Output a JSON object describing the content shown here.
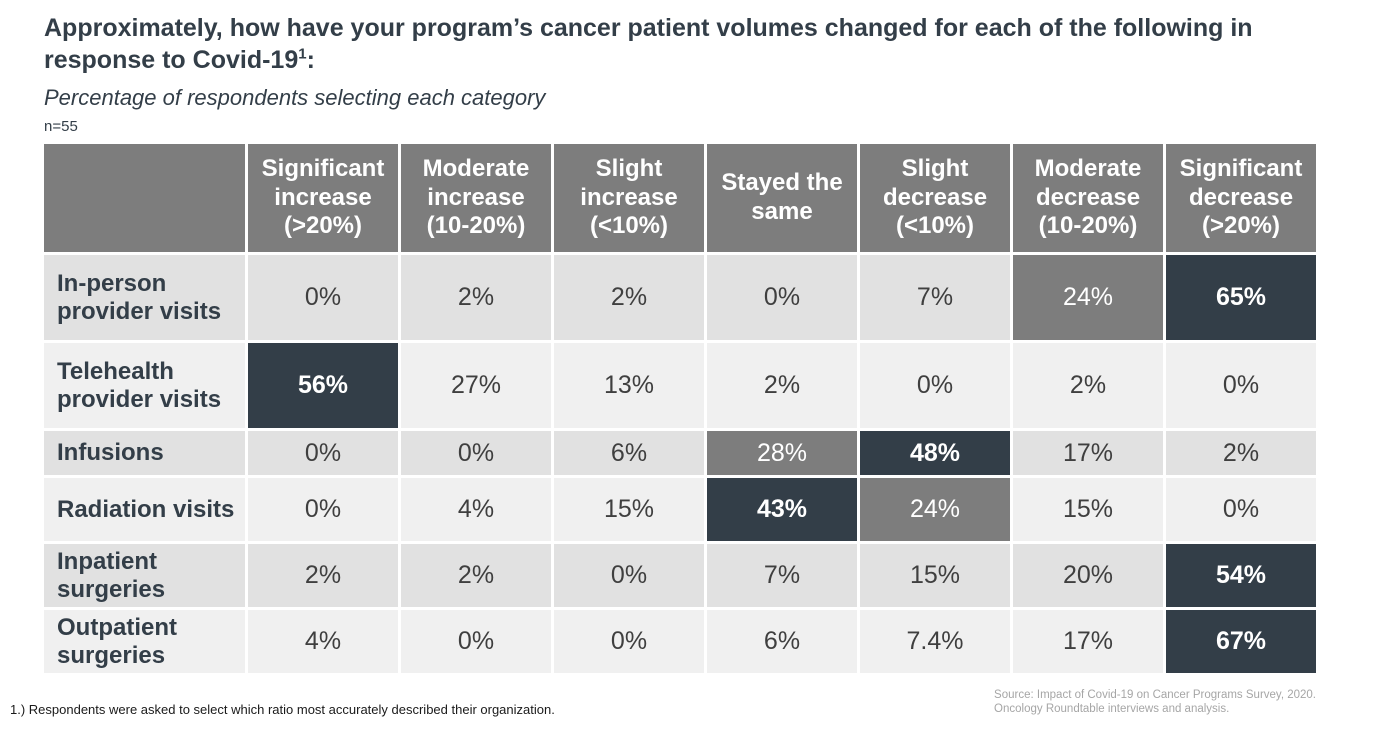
{
  "header": {
    "title_main": "Approximately, how have your program’s cancer patient volumes changed for each of the following in response to Covid-19",
    "title_superscript": "1",
    "title_colon": ":",
    "subtitle": "Percentage of respondents selecting each category",
    "sample_size": "n=55"
  },
  "chart_data": {
    "type": "table",
    "title": "Approximately, how have your program’s cancer patient volumes changed for each of the following in response to Covid-19¹:",
    "subtitle": "Percentage of respondents selecting each category",
    "sample_size": 55,
    "value_unit": "%",
    "columns": [
      "Significant increase (>20%)",
      "Moderate increase (10-20%)",
      "Slight increase (<10%)",
      "Stayed the same",
      "Slight decrease (<10%)",
      "Moderate decrease (10-20%)",
      "Significant decrease (>20%)"
    ],
    "rows": [
      {
        "label": "In-person provider visits",
        "values": [
          0,
          2,
          2,
          0,
          7,
          24,
          65
        ],
        "highlights": [
          null,
          null,
          null,
          null,
          null,
          "gray",
          "dark"
        ]
      },
      {
        "label": "Telehealth provider visits",
        "values": [
          56,
          27,
          13,
          2,
          0,
          2,
          0
        ],
        "highlights": [
          "dark",
          null,
          null,
          null,
          null,
          null,
          null
        ]
      },
      {
        "label": "Infusions",
        "values": [
          0,
          0,
          6,
          28,
          48,
          17,
          2
        ],
        "highlights": [
          null,
          null,
          null,
          "gray",
          "dark",
          null,
          null
        ]
      },
      {
        "label": "Radiation visits",
        "values": [
          0,
          4,
          15,
          43,
          24,
          15,
          0
        ],
        "highlights": [
          null,
          null,
          null,
          "dark",
          "gray",
          null,
          null
        ]
      },
      {
        "label": "Inpatient surgeries",
        "values": [
          2,
          2,
          0,
          7,
          15,
          20,
          54
        ],
        "highlights": [
          null,
          null,
          null,
          null,
          null,
          null,
          "dark"
        ]
      },
      {
        "label": "Outpatient surgeries",
        "values": [
          4,
          0,
          0,
          6,
          7.4,
          17,
          67
        ],
        "highlights": [
          null,
          null,
          null,
          null,
          null,
          null,
          "dark"
        ]
      }
    ]
  },
  "footer": {
    "note": "1.) Respondents were asked to select which ratio most accurately described their organization.",
    "source_line1": "Source: Impact of Covid-19 on Cancer Programs Survey, 2020.",
    "source_line2": "Oncology Roundtable interviews and analysis."
  },
  "colors": {
    "header_bg": "#7d7d7d",
    "gray_highlight": "#7d7d7d",
    "dark_highlight": "#333e48",
    "row_bg_odd": "#e1e1e1",
    "row_bg_even": "#f0f0f0",
    "title_text": "#333e48",
    "value_text": "#3f3f3f",
    "source_text": "#a6a6a6"
  }
}
